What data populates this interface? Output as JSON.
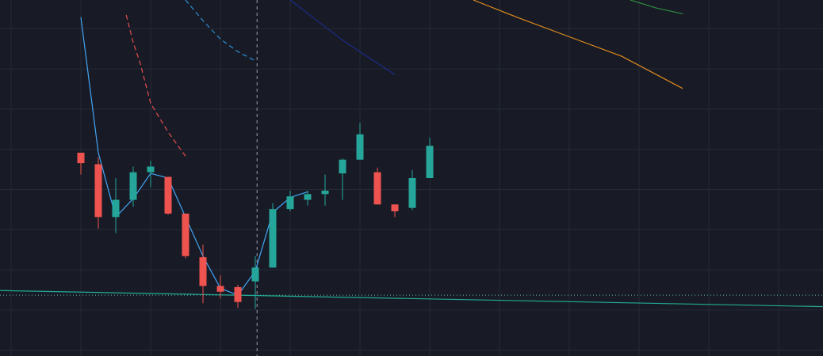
{
  "theme": {
    "background": "#181b25",
    "grid": "#252a37",
    "bull": "#26a69a",
    "bear": "#ef5350",
    "trendline": "#22ab94",
    "price_line": "#5fb6a8",
    "crosshair": "#9aa0ac",
    "close_line": "#42a5f5",
    "ma_fast": "#e84e4e",
    "ma_mid": "#2b8fd6",
    "ma_slow_navy": "#1a2a8a",
    "ma_orange": "#e08a1e",
    "ma_green": "#2e8b3e"
  },
  "chart_data": {
    "type": "candlestick",
    "x_index": [
      0,
      38
    ],
    "ylim": [
      175,
      485
    ],
    "grid": true,
    "crosshair_x": 10.1,
    "last_price_line": 228.0,
    "candles": [
      {
        "o": 352,
        "h": 352,
        "l": 333,
        "c": 343
      },
      {
        "o": 342,
        "h": 348,
        "l": 286,
        "c": 296
      },
      {
        "o": 296,
        "h": 330,
        "l": 282,
        "c": 311
      },
      {
        "o": 311,
        "h": 340,
        "l": 305,
        "c": 335
      },
      {
        "o": 335,
        "h": 345,
        "l": 322,
        "c": 340
      },
      {
        "o": 331,
        "h": 331,
        "l": 298,
        "c": 299
      },
      {
        "o": 299,
        "h": 299,
        "l": 260,
        "c": 262
      },
      {
        "o": 261,
        "h": 272,
        "l": 221,
        "c": 236
      },
      {
        "o": 236,
        "h": 245,
        "l": 225,
        "c": 231
      },
      {
        "o": 235,
        "h": 237,
        "l": 217,
        "c": 222
      },
      {
        "o": 240,
        "h": 262,
        "l": 216,
        "c": 252
      },
      {
        "o": 252,
        "h": 308,
        "l": 252,
        "c": 303
      },
      {
        "o": 303,
        "h": 319,
        "l": 301,
        "c": 314
      },
      {
        "o": 311,
        "h": 319,
        "l": 306,
        "c": 316
      },
      {
        "o": 316,
        "h": 333,
        "l": 306,
        "c": 319
      },
      {
        "o": 334,
        "h": 347,
        "l": 311,
        "c": 346
      },
      {
        "o": 346,
        "h": 378,
        "l": 346,
        "c": 368
      },
      {
        "o": 335,
        "h": 339,
        "l": 307,
        "c": 307
      },
      {
        "o": 307,
        "h": 307,
        "l": 296,
        "c": 301
      },
      {
        "o": 304,
        "h": 337,
        "l": 302,
        "c": 330
      },
      {
        "o": 330,
        "h": 365,
        "l": 330,
        "c": 358
      }
    ]
  },
  "moving_averages": [
    {
      "key": "close_line",
      "style": "solid",
      "points": [
        [
          0,
          470
        ],
        [
          1,
          352
        ],
        [
          2,
          296
        ],
        [
          3,
          312
        ],
        [
          4,
          334
        ],
        [
          5,
          330
        ],
        [
          6,
          296
        ],
        [
          7,
          262
        ],
        [
          8,
          234
        ],
        [
          9,
          228
        ],
        [
          10,
          249
        ],
        [
          11,
          300
        ],
        [
          12,
          313
        ],
        [
          13,
          318
        ]
      ]
    },
    {
      "key": "ma_fast",
      "style": "dashed",
      "points": [
        [
          2.6,
          472
        ],
        [
          3.0,
          448
        ],
        [
          3.4,
          430
        ],
        [
          4.0,
          395
        ],
        [
          5.0,
          370
        ],
        [
          6.0,
          349
        ]
      ]
    },
    {
      "key": "ma_mid",
      "style": "dashed",
      "points": [
        [
          6.0,
          485
        ],
        [
          7.0,
          467
        ],
        [
          8.0,
          451
        ],
        [
          9.0,
          440
        ],
        [
          10.0,
          432
        ]
      ]
    },
    {
      "key": "ma_slow_navy",
      "style": "solid",
      "points": [
        [
          12,
          485
        ],
        [
          15,
          450
        ],
        [
          18,
          420
        ]
      ]
    },
    {
      "key": "ma_orange",
      "style": "solid",
      "points": [
        [
          22.5,
          485
        ],
        [
          25,
          470
        ],
        [
          28,
          453
        ],
        [
          31,
          436
        ],
        [
          34.5,
          408
        ]
      ]
    },
    {
      "key": "ma_green",
      "style": "solid",
      "points": [
        [
          31.5,
          485
        ],
        [
          33,
          478
        ],
        [
          34.5,
          473
        ]
      ]
    }
  ],
  "trendline": {
    "start": [
      0,
      232
    ],
    "end": [
      38,
      218
    ]
  }
}
